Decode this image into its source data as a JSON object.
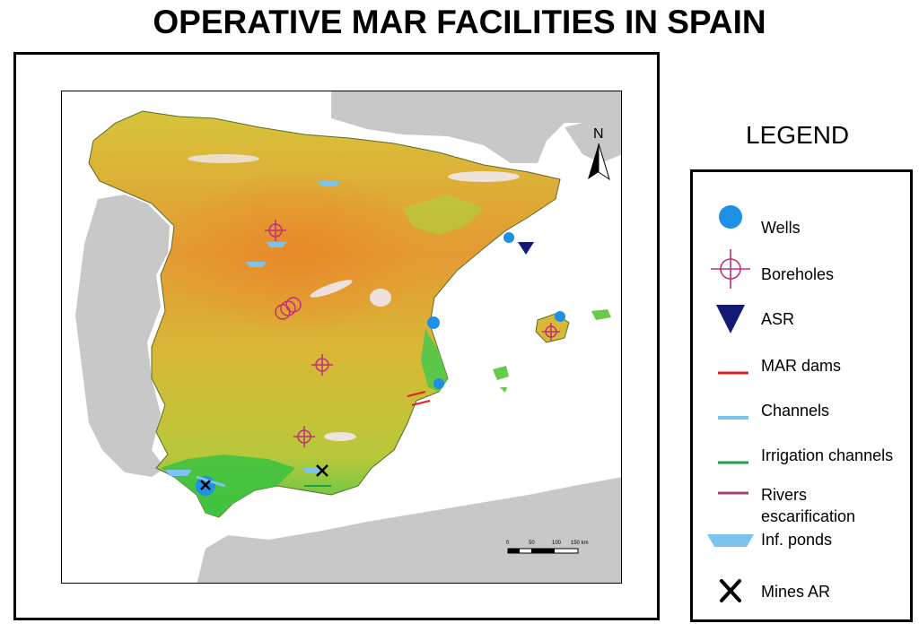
{
  "title": "OPERATIVE MAR FACILITIES IN SPAIN",
  "north_label": "N",
  "scale_bar": {
    "ticks": [
      "0",
      "50",
      "100",
      "150 km"
    ]
  },
  "legend": {
    "title": "LEGEND",
    "items": [
      {
        "label": "Wells",
        "symbol": "wells-circle",
        "color": "#1e90e6"
      },
      {
        "label": "Boreholes",
        "symbol": "borehole-crosshair",
        "color": "#c0307a"
      },
      {
        "label": "ASR",
        "symbol": "asr-triangle",
        "color": "#141a73"
      },
      {
        "label": "MAR dams",
        "symbol": "red-line",
        "color": "#e02020"
      },
      {
        "label": "Channels",
        "symbol": "lightblue-line",
        "color": "#7cc4ee"
      },
      {
        "label": "Irrigation channels",
        "symbol": "green-line",
        "color": "#20a040"
      },
      {
        "label": "Rivers escarification",
        "symbol": "purple-line",
        "color": "#a0407a"
      },
      {
        "label": "Inf. ponds",
        "symbol": "pond-trapezoid",
        "color": "#7cc4ee"
      },
      {
        "label": "Mines AR",
        "symbol": "pickaxe-icon",
        "color": "#000000"
      }
    ]
  },
  "colors": {
    "land_lowland": "#3fc23f",
    "land_mid": "#c8c830",
    "land_high": "#e0902a",
    "land_peak": "#ffffff",
    "neighbor_land": "#c8c8c8",
    "sea": "#ffffff"
  }
}
